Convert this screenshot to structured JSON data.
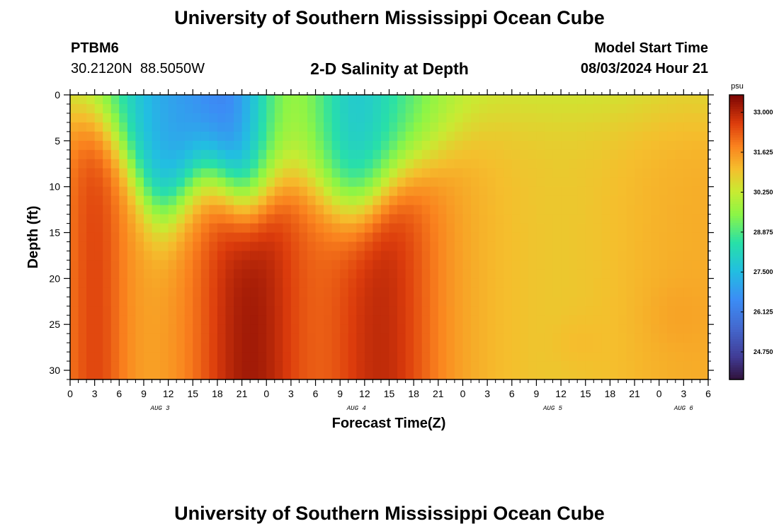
{
  "header": {
    "title": "University of Southern Mississippi Ocean Cube",
    "station_id": "PTBM6",
    "station_location": "30.2120N  88.5050W",
    "chart_title": "2-D Salinity at Depth",
    "start_label": "Model Start Time",
    "start_time": "08/03/2024 Hour 21"
  },
  "footer": {
    "title": "University of Southern Mississippi Ocean Cube"
  },
  "chart_data": {
    "type": "heatmap",
    "title": "2-D Salinity at Depth",
    "xlabel": "Forecast Time(Z)",
    "ylabel": "Depth (ft)",
    "x_hours_from_start": [
      0,
      78
    ],
    "ylim": [
      0,
      31
    ],
    "x_tick_labels": [
      "0",
      "3",
      "6",
      "9",
      "12",
      "15",
      "18",
      "21",
      "0",
      "3",
      "6",
      "9",
      "12",
      "15",
      "18",
      "21",
      "0",
      "3",
      "6",
      "9",
      "12",
      "15",
      "18",
      "21",
      "0",
      "3",
      "6"
    ],
    "y_ticks": [
      0,
      5,
      10,
      15,
      20,
      25,
      30
    ],
    "day_labels": [
      {
        "label": "AUG 3",
        "hour": 11
      },
      {
        "label": "AUG 4",
        "hour": 35
      },
      {
        "label": "AUG 5",
        "hour": 59
      },
      {
        "label": "AUG 6",
        "hour": 75
      }
    ],
    "colorbar": {
      "unit": "psu",
      "range": [
        23.8,
        33.6
      ],
      "ticks": [
        33.0,
        31.625,
        30.25,
        28.875,
        27.5,
        26.125,
        24.75
      ],
      "tick_labels": [
        "33.000",
        "31.625",
        "30.250",
        "28.875",
        "27.500",
        "26.125",
        "24.750"
      ]
    },
    "grid_step_hours": 1,
    "grid_step_ft": 1,
    "salinity_model": "approximate field read from image: surface fresher (~26-29 psu) during Aug 3-4 overlying saltier bottom water (~33 psu); later period ~30-31 psu throughout"
  },
  "colors": {
    "background": "#ffffff",
    "axis": "#000000"
  }
}
